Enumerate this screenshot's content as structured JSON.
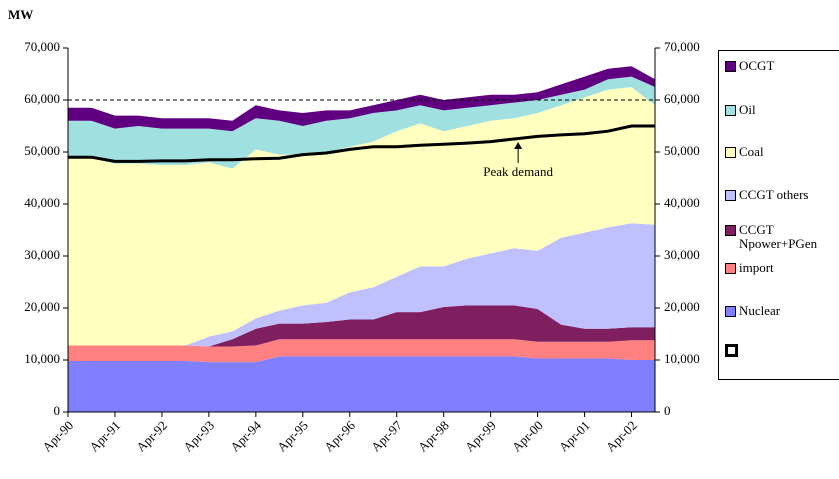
{
  "chart_data": {
    "type": "stacked_area",
    "y_label": "MW",
    "categories": [
      "Apr-90",
      null,
      "Apr-91",
      null,
      "Apr-92",
      null,
      "Apr-93",
      null,
      "Apr-94",
      null,
      "Apr-95",
      null,
      "Apr-96",
      null,
      "Apr-97",
      null,
      "Apr-98",
      null,
      "Apr-99",
      null,
      "Apr-00",
      null,
      "Apr-01",
      null,
      "Apr-02",
      null
    ],
    "series": [
      {
        "name": "Nuclear",
        "color": "#8080ff",
        "values": [
          9800,
          9800,
          9800,
          9800,
          9800,
          9800,
          9600,
          9600,
          9600,
          10700,
          10700,
          10700,
          10700,
          10700,
          10700,
          10700,
          10700,
          10700,
          10700,
          10700,
          10300,
          10300,
          10300,
          10300,
          10000,
          10000
        ]
      },
      {
        "name": "import",
        "color": "#ff8080",
        "values": [
          3000,
          3000,
          3000,
          3000,
          3000,
          3000,
          3000,
          3000,
          3200,
          3300,
          3300,
          3300,
          3300,
          3300,
          3300,
          3300,
          3300,
          3300,
          3300,
          3300,
          3200,
          3200,
          3200,
          3200,
          3800,
          3800
        ]
      },
      {
        "name": "CCGT Npower+PGen",
        "color": "#7f1f5f",
        "values": [
          0,
          0,
          0,
          0,
          0,
          0,
          0,
          1400,
          3200,
          3000,
          3000,
          3300,
          3800,
          3800,
          5200,
          5200,
          6200,
          6500,
          6500,
          6500,
          6300,
          3300,
          2500,
          2500,
          2500,
          2500
        ]
      },
      {
        "name": "CCGT others",
        "color": "#c0c0ff",
        "values": [
          0,
          0,
          0,
          0,
          0,
          0,
          1900,
          1500,
          2000,
          2500,
          3500,
          3700,
          5200,
          6200,
          6800,
          8800,
          7800,
          9000,
          10000,
          11000,
          11200,
          16700,
          18500,
          19500,
          20000,
          19700
        ]
      },
      {
        "name": "Coal",
        "color": "#ffffc0",
        "values": [
          36000,
          36000,
          35000,
          35000,
          34700,
          34700,
          33500,
          31300,
          32500,
          30000,
          29000,
          29000,
          28000,
          28000,
          28000,
          27500,
          26000,
          25500,
          25500,
          25000,
          26500,
          25500,
          26000,
          26500,
          26200,
          23000
        ]
      },
      {
        "name": "Oil",
        "color": "#a0e0e0",
        "values": [
          7200,
          7200,
          6700,
          7200,
          7000,
          7000,
          6500,
          7200,
          6000,
          6500,
          5500,
          6000,
          5500,
          5500,
          4000,
          3500,
          4000,
          3500,
          3000,
          3000,
          2500,
          2000,
          1500,
          2000,
          2000,
          3500
        ]
      },
      {
        "name": "OCGT",
        "color": "#600080",
        "values": [
          2500,
          2500,
          2500,
          2000,
          2000,
          2000,
          2000,
          2000,
          2500,
          2000,
          2500,
          2000,
          1500,
          1500,
          2000,
          2000,
          2000,
          2000,
          2000,
          1500,
          1500,
          2000,
          2500,
          2000,
          2000,
          1500
        ]
      }
    ],
    "peak_demand": {
      "color": "#000000",
      "values": [
        49000,
        49000,
        48200,
        48200,
        48300,
        48300,
        48500,
        48500,
        48700,
        48800,
        49500,
        49800,
        50500,
        51000,
        51000,
        51300,
        51500,
        51700,
        52000,
        52500,
        53000,
        53300,
        53500,
        54000,
        55000,
        55000
      ]
    },
    "annotation": "Peak demand",
    "reference_line": 60000,
    "ylim": [
      0,
      70000
    ],
    "yticks": [
      0,
      {
        "value": 10000,
        "label": "10,000"
      },
      {
        "value": 20000,
        "label": "20,000"
      },
      {
        "value": 30000,
        "label": "30,000"
      },
      {
        "value": 40000,
        "label": "40,000"
      },
      {
        "value": 50000,
        "label": "50,000"
      },
      {
        "value": 60000,
        "label": "60,000"
      },
      {
        "value": 70000,
        "label": "70,000"
      }
    ],
    "y2lim": [
      0,
      70000
    ],
    "y2ticks": [
      0,
      {
        "value": 10000,
        "label": "10,000"
      },
      {
        "value": 20000,
        "label": "20,000"
      },
      {
        "value": 30000,
        "label": "30,000"
      },
      {
        "value": 40000,
        "label": "40,000"
      },
      {
        "value": 50000,
        "label": "50,000"
      },
      {
        "value": 60000,
        "label": "60,000"
      },
      {
        "value": 70000,
        "label": "70,000"
      }
    ]
  }
}
